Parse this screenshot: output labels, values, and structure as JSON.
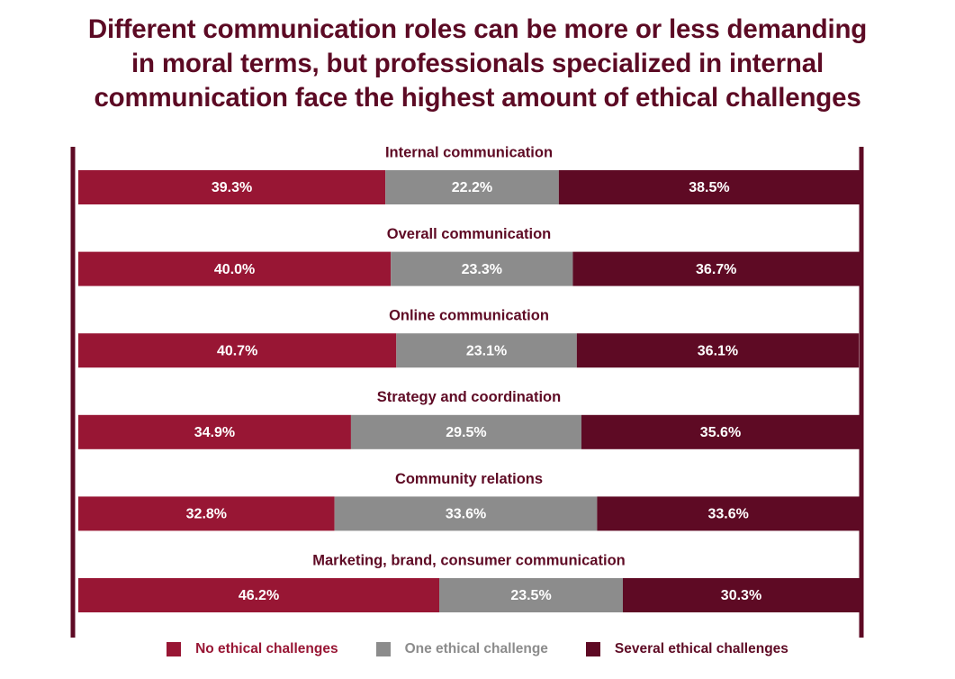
{
  "title_lines": [
    "Different communication roles can be more or less demanding",
    "in moral terms, but professionals specialized in internal",
    "communication face the highest amount of ethical challenges"
  ],
  "colors": {
    "no": "#981634",
    "one": "#8c8c8c",
    "several": "#5e0a24",
    "axis": "#5e0a24",
    "title": "#5c0a24"
  },
  "chart_data": {
    "type": "bar",
    "orientation": "horizontal",
    "stacked": true,
    "percent": true,
    "xlim": [
      0,
      100
    ],
    "legend_position": "bottom",
    "categories": [
      "Internal communication",
      "Overall communication",
      "Online communication",
      "Strategy and coordination",
      "Community relations",
      "Marketing, brand, consumer communication"
    ],
    "series": [
      {
        "name": "No ethical challenges",
        "values": [
          39.3,
          40.0,
          40.7,
          34.9,
          32.8,
          46.2
        ],
        "labels": [
          "39.3%",
          "40.0%",
          "40.7%",
          "34.9%",
          "32.8%",
          "46.2%"
        ]
      },
      {
        "name": "One ethical challenge",
        "values": [
          22.2,
          23.3,
          23.1,
          29.5,
          33.6,
          23.5
        ],
        "labels": [
          "22.2%",
          "23.3%",
          "23.1%",
          "29.5%",
          "33.6%",
          "23.5%"
        ]
      },
      {
        "name": "Several ethical challenges",
        "values": [
          38.5,
          36.7,
          36.1,
          35.6,
          33.6,
          30.3
        ],
        "labels": [
          "38.5%",
          "36.7%",
          "36.1%",
          "35.6%",
          "33.6%",
          "30.3%"
        ]
      }
    ]
  }
}
